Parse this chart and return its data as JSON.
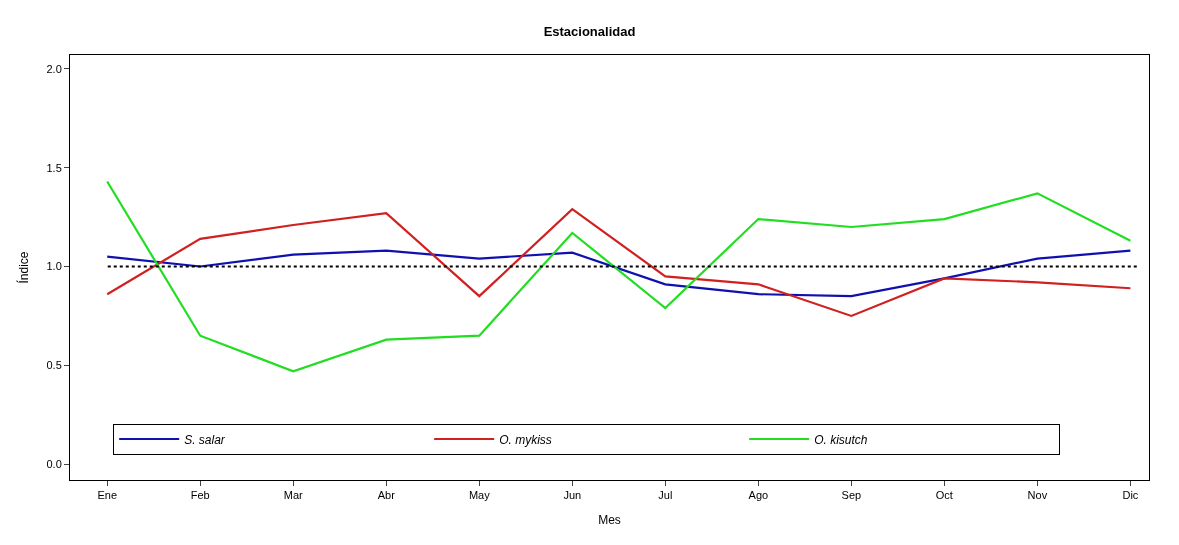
{
  "chart_data": {
    "type": "line",
    "title": "Estacionalidad",
    "xlabel": "Mes",
    "ylabel": "Índice",
    "categories": [
      "Ene",
      "Feb",
      "Mar",
      "Abr",
      "May",
      "Jun",
      "Jul",
      "Ago",
      "Sep",
      "Oct",
      "Nov",
      "Dic"
    ],
    "series": [
      {
        "name": "S. salar",
        "color": "#1010b0",
        "values": [
          1.05,
          1.0,
          1.06,
          1.08,
          1.04,
          1.07,
          0.91,
          0.86,
          0.85,
          0.94,
          1.04,
          1.08
        ]
      },
      {
        "name": "O. mykiss",
        "color": "#d02020",
        "values": [
          0.86,
          1.14,
          1.21,
          1.27,
          0.85,
          1.29,
          0.95,
          0.91,
          0.75,
          0.94,
          0.92,
          0.89
        ]
      },
      {
        "name": "O. kisutch",
        "color": "#22dd22",
        "values": [
          1.43,
          0.65,
          0.47,
          0.63,
          0.65,
          1.17,
          0.79,
          1.24,
          1.2,
          1.24,
          1.37,
          1.13
        ]
      }
    ],
    "ylim": [
      -0.08,
      2.07
    ],
    "yticks": [
      {
        "value": 0,
        "label": "0.0"
      },
      {
        "value": 0.5,
        "label": "0.5"
      },
      {
        "value": 1,
        "label": "1.0"
      },
      {
        "value": 1.5,
        "label": "1.5"
      },
      {
        "value": 2,
        "label": "2.0"
      }
    ],
    "ref_lines": [
      {
        "axis": "y",
        "value": 1,
        "color": "#000000",
        "line_style": "dotted"
      }
    ],
    "legend": "bottom",
    "marker": "none",
    "line_style": "solid"
  }
}
